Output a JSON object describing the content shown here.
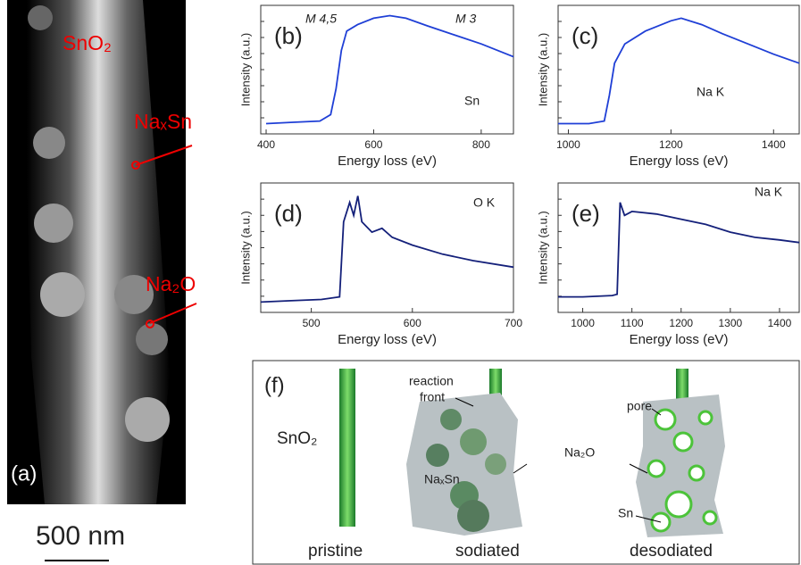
{
  "chart_data": [
    {
      "type": "line",
      "title": "(b)",
      "x_label": "Energy loss (eV)",
      "y_label": "Intensity (a.u.)",
      "annotations": [
        "M 4,5",
        "M 3",
        "Sn"
      ],
      "color": "#1f3fd6",
      "xlim": [
        390,
        860
      ],
      "xticks": [
        400,
        600,
        800
      ],
      "ylim": [
        0,
        1
      ],
      "x": [
        400,
        450,
        500,
        520,
        530,
        540,
        550,
        570,
        600,
        630,
        660,
        700,
        750,
        800,
        860
      ],
      "values": [
        0.08,
        0.09,
        0.1,
        0.15,
        0.35,
        0.65,
        0.8,
        0.85,
        0.9,
        0.92,
        0.9,
        0.84,
        0.77,
        0.7,
        0.6
      ]
    },
    {
      "type": "line",
      "title": "(c)",
      "x_label": "Energy loss (eV)",
      "y_label": "Intensity (a.u.)",
      "annotations": [
        "Na K"
      ],
      "color": "#1f3fd6",
      "xlim": [
        980,
        1450
      ],
      "xticks": [
        1000,
        1200,
        1400
      ],
      "ylim": [
        0,
        1
      ],
      "x": [
        980,
        1040,
        1070,
        1080,
        1090,
        1110,
        1150,
        1200,
        1220,
        1260,
        1300,
        1350,
        1400,
        1450
      ],
      "values": [
        0.08,
        0.08,
        0.1,
        0.3,
        0.55,
        0.7,
        0.8,
        0.88,
        0.9,
        0.85,
        0.78,
        0.7,
        0.62,
        0.55
      ]
    },
    {
      "type": "line",
      "title": "(d)",
      "x_label": "Energy loss (eV)",
      "y_label": "Intensity (a.u.)",
      "annotations": [
        "O K"
      ],
      "color": "#14207a",
      "xlim": [
        450,
        700
      ],
      "xticks": [
        500,
        600,
        700
      ],
      "ylim": [
        0,
        1
      ],
      "x": [
        450,
        480,
        510,
        528,
        532,
        538,
        542,
        546,
        550,
        560,
        570,
        580,
        600,
        630,
        660,
        700
      ],
      "values": [
        0.08,
        0.09,
        0.1,
        0.12,
        0.7,
        0.85,
        0.75,
        0.9,
        0.7,
        0.62,
        0.65,
        0.58,
        0.52,
        0.45,
        0.4,
        0.35
      ]
    },
    {
      "type": "line",
      "title": "(e)",
      "x_label": "Energy loss (eV)",
      "y_label": "Intensity (a.u.)",
      "annotations": [
        "Na K"
      ],
      "color": "#14207a",
      "xlim": [
        950,
        1440
      ],
      "xticks": [
        1000,
        1100,
        1200,
        1300,
        1400
      ],
      "ylim": [
        0,
        1
      ],
      "x": [
        950,
        1000,
        1060,
        1070,
        1076,
        1085,
        1100,
        1150,
        1200,
        1250,
        1300,
        1350,
        1400,
        1440
      ],
      "values": [
        0.12,
        0.12,
        0.13,
        0.14,
        0.85,
        0.75,
        0.78,
        0.76,
        0.72,
        0.68,
        0.62,
        0.58,
        0.56,
        0.54
      ]
    }
  ],
  "image_panel": {
    "label": "(a)",
    "labels": [
      "SnO₂",
      "NaₓSn",
      "Na₂O"
    ],
    "scale_bar": "500 nm"
  },
  "diagram": {
    "label": "(f)",
    "texts": [
      "SnO₂",
      "pristine",
      "reaction",
      "front",
      "NaₓSn",
      "sodiated",
      "pore",
      "Na₂O",
      "Sn",
      "desodiated"
    ]
  }
}
